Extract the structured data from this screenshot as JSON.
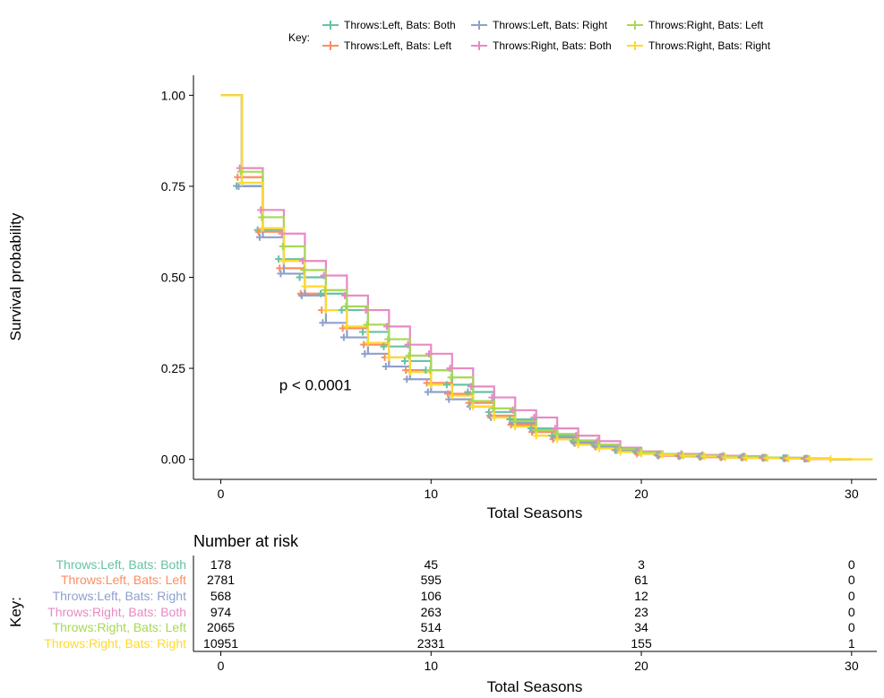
{
  "legend": {
    "title": "Key:",
    "placement": "top"
  },
  "risk_table": {
    "title": "Number at risk",
    "ylabel": "Key:",
    "xlabel": "Total Seasons",
    "times": [
      0,
      10,
      20,
      30
    ],
    "rows": [
      {
        "name": "Throws:Left, Bats: Both",
        "color": "#66C2A5",
        "counts": [
          "178",
          "45",
          "3",
          "0"
        ]
      },
      {
        "name": "Throws:Left, Bats: Left",
        "color": "#FC8D62",
        "counts": [
          "2781",
          "595",
          "61",
          "0"
        ]
      },
      {
        "name": "Throws:Left, Bats: Right",
        "color": "#8DA0CB",
        "counts": [
          "568",
          "106",
          "12",
          "0"
        ]
      },
      {
        "name": "Throws:Right, Bats: Both",
        "color": "#E78AC3",
        "counts": [
          "974",
          "263",
          "23",
          "0"
        ]
      },
      {
        "name": "Throws:Right, Bats: Left",
        "color": "#A6D854",
        "counts": [
          "2065",
          "514",
          "34",
          "0"
        ]
      },
      {
        "name": "Throws:Right, Bats: Right",
        "color": "#FFD92F",
        "counts": [
          "10951",
          "2331",
          "155",
          "1"
        ]
      }
    ]
  },
  "chart_data": {
    "type": "line",
    "step": true,
    "title": "",
    "xlabel": "Total Seasons",
    "ylabel": "Survival probability",
    "xlim": [
      -1.3,
      31.2
    ],
    "ylim": [
      -0.055,
      1.055
    ],
    "xticks": [
      0,
      10,
      20,
      30
    ],
    "yticks": [
      0.0,
      0.25,
      0.5,
      0.75,
      1.0
    ],
    "ytick_labels": [
      "0.00",
      "0.25",
      "0.50",
      "0.75",
      "1.00"
    ],
    "grid": false,
    "annotation": "p < 0.0001",
    "annotation_pos": [
      4.5,
      0.19
    ],
    "series": [
      {
        "name": "Throws:Left, Bats: Both",
        "color": "#66C2A5",
        "x": [
          0,
          1,
          2,
          3,
          4,
          5,
          6,
          7,
          8,
          9,
          10,
          11,
          12,
          13,
          14,
          15,
          16,
          17,
          18,
          19,
          20,
          21,
          22,
          23,
          24,
          25,
          26,
          27,
          28,
          29
        ],
        "y": [
          1.0,
          0.751,
          0.63,
          0.55,
          0.5,
          0.455,
          0.41,
          0.35,
          0.31,
          0.27,
          0.245,
          0.205,
          0.185,
          0.13,
          0.11,
          0.085,
          0.065,
          0.05,
          0.04,
          0.025,
          0.02,
          0.012,
          0.01,
          0.008,
          0.007,
          0.006,
          0.005,
          0.004,
          0.002,
          0.0
        ]
      },
      {
        "name": "Throws:Left, Bats: Left",
        "color": "#FC8D62",
        "x": [
          0,
          1,
          2,
          3,
          4,
          5,
          6,
          7,
          8,
          9,
          10,
          11,
          12,
          13,
          14,
          15,
          16,
          17,
          18,
          19,
          20,
          21,
          22,
          23,
          24,
          25,
          26,
          27,
          28,
          29
        ],
        "y": [
          1.0,
          0.775,
          0.625,
          0.525,
          0.455,
          0.41,
          0.36,
          0.315,
          0.28,
          0.245,
          0.21,
          0.18,
          0.155,
          0.12,
          0.095,
          0.075,
          0.055,
          0.045,
          0.035,
          0.025,
          0.015,
          0.01,
          0.008,
          0.006,
          0.005,
          0.004,
          0.003,
          0.002,
          0.001,
          0.0
        ]
      },
      {
        "name": "Throws:Left, Bats: Right",
        "color": "#8DA0CB",
        "x": [
          0,
          1,
          2,
          3,
          4,
          5,
          6,
          7,
          8,
          9,
          10,
          11,
          12,
          13,
          14,
          15,
          16,
          17,
          18,
          19,
          20,
          21,
          22,
          23,
          24,
          25,
          26,
          27,
          28,
          29
        ],
        "y": [
          1.0,
          0.75,
          0.61,
          0.51,
          0.45,
          0.375,
          0.335,
          0.29,
          0.255,
          0.22,
          0.185,
          0.165,
          0.145,
          0.115,
          0.1,
          0.08,
          0.06,
          0.045,
          0.035,
          0.025,
          0.02,
          0.012,
          0.01,
          0.009,
          0.008,
          0.008,
          0.005,
          0.004,
          0.003,
          0.0
        ]
      },
      {
        "name": "Throws:Right, Bats: Both",
        "color": "#E78AC3",
        "x": [
          0,
          1,
          2,
          3,
          4,
          5,
          6,
          7,
          8,
          9,
          10,
          11,
          12,
          13,
          14,
          15,
          16,
          17,
          18,
          19,
          20,
          21,
          22,
          23,
          24,
          25,
          26,
          27,
          28,
          29
        ],
        "y": [
          1.0,
          0.8,
          0.685,
          0.62,
          0.545,
          0.505,
          0.45,
          0.41,
          0.365,
          0.315,
          0.29,
          0.25,
          0.2,
          0.17,
          0.135,
          0.115,
          0.085,
          0.065,
          0.05,
          0.032,
          0.022,
          0.015,
          0.015,
          0.012,
          0.01,
          0.008,
          0.005,
          0.004,
          0.002,
          0.0
        ]
      },
      {
        "name": "Throws:Right, Bats: Left",
        "color": "#A6D854",
        "x": [
          0,
          1,
          2,
          3,
          4,
          5,
          6,
          7,
          8,
          9,
          10,
          11,
          12,
          13,
          14,
          15,
          16,
          17,
          18,
          19,
          20,
          21,
          22,
          23,
          24,
          25,
          26,
          27,
          28,
          29
        ],
        "y": [
          1.0,
          0.79,
          0.665,
          0.585,
          0.52,
          0.465,
          0.42,
          0.37,
          0.33,
          0.285,
          0.245,
          0.225,
          0.16,
          0.14,
          0.105,
          0.08,
          0.07,
          0.052,
          0.04,
          0.028,
          0.02,
          0.015,
          0.012,
          0.01,
          0.008,
          0.006,
          0.005,
          0.004,
          0.002,
          0.0
        ]
      },
      {
        "name": "Throws:Right, Bats: Right",
        "color": "#FFD92F",
        "x": [
          0,
          1,
          2,
          3,
          4,
          5,
          6,
          7,
          8,
          9,
          10,
          11,
          12,
          13,
          14,
          15,
          16,
          17,
          18,
          19,
          20,
          21,
          22,
          23,
          24,
          25,
          26,
          27,
          28,
          29,
          30
        ],
        "y": [
          1.0,
          0.76,
          0.635,
          0.545,
          0.475,
          0.41,
          0.365,
          0.32,
          0.28,
          0.24,
          0.205,
          0.175,
          0.145,
          0.115,
          0.09,
          0.065,
          0.055,
          0.04,
          0.03,
          0.02,
          0.015,
          0.012,
          0.01,
          0.008,
          0.005,
          0.004,
          0.003,
          0.002,
          0.002,
          0.001,
          0.0
        ]
      }
    ]
  }
}
